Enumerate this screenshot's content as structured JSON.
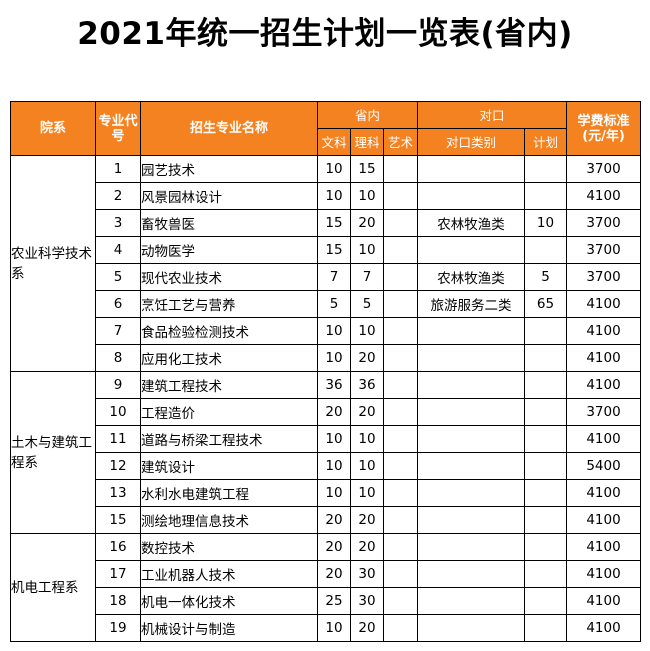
{
  "title": "2021年统一招生计划一览表(省内)",
  "headers": {
    "department": "院系",
    "code": "专业代号",
    "major": "招生专业名称",
    "province": "省内",
    "province_wenke": "文科",
    "province_like": "理科",
    "province_yishu": "艺术",
    "duikou": "对口",
    "duikou_category": "对口类别",
    "duikou_plan": "计划",
    "fee": "学费标准(元/年)"
  },
  "departments": [
    {
      "name": "农业科学技术系",
      "rows": [
        {
          "code": "1",
          "major": "园艺技术",
          "wenke": "10",
          "like": "15",
          "yishu": "",
          "category": "",
          "plan": "",
          "fee": "3700"
        },
        {
          "code": "2",
          "major": "风景园林设计",
          "wenke": "10",
          "like": "10",
          "yishu": "",
          "category": "",
          "plan": "",
          "fee": "4100"
        },
        {
          "code": "3",
          "major": "畜牧兽医",
          "wenke": "15",
          "like": "20",
          "yishu": "",
          "category": "农林牧渔类",
          "plan": "10",
          "fee": "3700"
        },
        {
          "code": "4",
          "major": "动物医学",
          "wenke": "15",
          "like": "10",
          "yishu": "",
          "category": "",
          "plan": "",
          "fee": "3700"
        },
        {
          "code": "5",
          "major": "现代农业技术",
          "wenke": "7",
          "like": "7",
          "yishu": "",
          "category": "农林牧渔类",
          "plan": "5",
          "fee": "3700"
        },
        {
          "code": "6",
          "major": "烹饪工艺与营养",
          "wenke": "5",
          "like": "5",
          "yishu": "",
          "category": "旅游服务二类",
          "plan": "65",
          "fee": "4100"
        },
        {
          "code": "7",
          "major": "食品检验检测技术",
          "wenke": "10",
          "like": "10",
          "yishu": "",
          "category": "",
          "plan": "",
          "fee": "4100"
        },
        {
          "code": "8",
          "major": "应用化工技术",
          "wenke": "10",
          "like": "20",
          "yishu": "",
          "category": "",
          "plan": "",
          "fee": "4100"
        }
      ]
    },
    {
      "name": "土木与建筑工程系",
      "rows": [
        {
          "code": "9",
          "major": "建筑工程技术",
          "wenke": "36",
          "like": "36",
          "yishu": "",
          "category": "",
          "plan": "",
          "fee": "4100"
        },
        {
          "code": "10",
          "major": "工程造价",
          "wenke": "20",
          "like": "20",
          "yishu": "",
          "category": "",
          "plan": "",
          "fee": "3700"
        },
        {
          "code": "11",
          "major": "道路与桥梁工程技术",
          "wenke": "10",
          "like": "10",
          "yishu": "",
          "category": "",
          "plan": "",
          "fee": "4100"
        },
        {
          "code": "12",
          "major": "建筑设计",
          "wenke": "10",
          "like": "10",
          "yishu": "",
          "category": "",
          "plan": "",
          "fee": "5400"
        },
        {
          "code": "13",
          "major": "水利水电建筑工程",
          "wenke": "10",
          "like": "10",
          "yishu": "",
          "category": "",
          "plan": "",
          "fee": "4100"
        },
        {
          "code": "15",
          "major": "测绘地理信息技术",
          "wenke": "20",
          "like": "20",
          "yishu": "",
          "category": "",
          "plan": "",
          "fee": "4100"
        }
      ]
    },
    {
      "name": "机电工程系",
      "rows": [
        {
          "code": "16",
          "major": "数控技术",
          "wenke": "20",
          "like": "20",
          "yishu": "",
          "category": "",
          "plan": "",
          "fee": "4100"
        },
        {
          "code": "17",
          "major": "工业机器人技术",
          "wenke": "20",
          "like": "30",
          "yishu": "",
          "category": "",
          "plan": "",
          "fee": "4100"
        },
        {
          "code": "18",
          "major": "机电一体化技术",
          "wenke": "25",
          "like": "30",
          "yishu": "",
          "category": "",
          "plan": "",
          "fee": "4100"
        },
        {
          "code": "19",
          "major": "机械设计与制造",
          "wenke": "10",
          "like": "20",
          "yishu": "",
          "category": "",
          "plan": "",
          "fee": "4100"
        }
      ]
    }
  ]
}
